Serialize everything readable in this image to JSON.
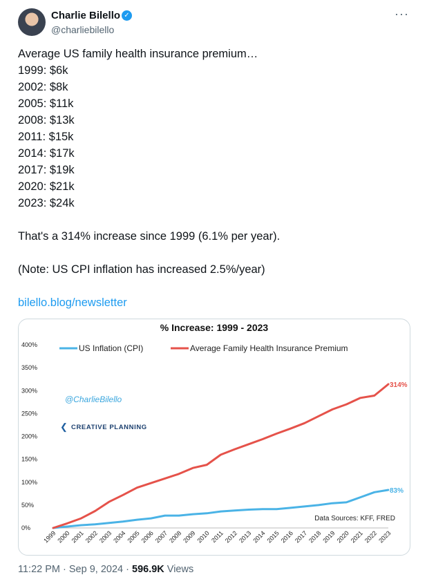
{
  "author": {
    "name": "Charlie Bilello",
    "handle": "@charliebilello",
    "verified_icon": "verified-badge-icon"
  },
  "menu_icon": "more-options-icon",
  "more_glyph": "···",
  "tweet": {
    "lines": [
      "Average US family health insurance premium…",
      "1999: $6k",
      "2002: $8k",
      "2005: $11k",
      "2008: $13k",
      "2011: $15k",
      "2014: $17k",
      "2017: $19k",
      "2020: $21k",
      "2023: $24k"
    ],
    "summary": "That's a 314% increase since 1999 (6.1% per year).",
    "note": "(Note: US CPI inflation has increased 2.5%/year)",
    "link": "bilello.blog/newsletter"
  },
  "meta": {
    "time": "11:22 PM",
    "date": "Sep 9, 2024",
    "views_count": "596.9K",
    "views_label": "Views"
  },
  "chart_data": {
    "type": "line",
    "title": "% Increase: 1999 - 2023",
    "x": [
      "1999",
      "2000",
      "2001",
      "2002",
      "2003",
      "2004",
      "2005",
      "2006",
      "2007",
      "2008",
      "2009",
      "2010",
      "2011",
      "2012",
      "2013",
      "2014",
      "2015",
      "2016",
      "2017",
      "2018",
      "2019",
      "2020",
      "2021",
      "2022",
      "2023"
    ],
    "y_ticks": [
      "0%",
      "50%",
      "100%",
      "150%",
      "200%",
      "250%",
      "300%",
      "350%",
      "400%"
    ],
    "ylim": [
      0,
      400
    ],
    "series": [
      {
        "name": "US Inflation (CPI)",
        "color": "#4ab3e6",
        "values": [
          0,
          3,
          6,
          8,
          11,
          14,
          18,
          21,
          27,
          27,
          30,
          32,
          36,
          38,
          40,
          41,
          41,
          44,
          47,
          50,
          54,
          56,
          67,
          78,
          83
        ],
        "end_label": "83%"
      },
      {
        "name": "Average Family Health Insurance Premium",
        "color": "#e5524a",
        "values": [
          0,
          10,
          21,
          37,
          57,
          72,
          88,
          98,
          108,
          118,
          131,
          138,
          160,
          172,
          183,
          194,
          206,
          217,
          229,
          244,
          259,
          270,
          284,
          289,
          314
        ],
        "end_label": "314%"
      }
    ],
    "legend_position": "top",
    "watermark": "@CharlieBilello",
    "brand": "CREATIVE PLANNING",
    "source": "Data Sources: KFF, FRED",
    "grid": false
  }
}
